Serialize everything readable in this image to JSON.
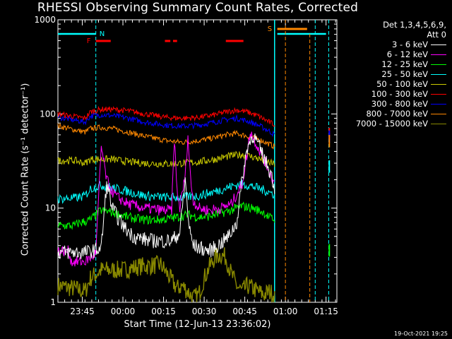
{
  "title": "RHESSI Observing Summary Count Rates, Corrected",
  "ylabel": "Corrected Count Rate (s⁻¹ detector⁻¹)",
  "xlabel": "Start Time (12-Jun-13 23:36:02)",
  "timestamp": "19-Oct-2021 19:25",
  "legend": {
    "header1": "Det 1,3,4,5,6,9,",
    "header2": "Att 0",
    "placement": "right, outside plot"
  },
  "chart_data": {
    "type": "line",
    "title": "RHESSI Observing Summary Count Rates, Corrected",
    "xlabel": "Start Time (12-Jun-13 23:36:02)",
    "ylabel": "Corrected Count Rate (s⁻¹ detector⁻¹)",
    "xscale": "time (minutes after 23:36:02)",
    "yscale": "log",
    "xlim": [
      0,
      103
    ],
    "ylim": [
      1,
      1000
    ],
    "x_ticks": [
      {
        "t": 9,
        "label": "23:45"
      },
      {
        "t": 24,
        "label": "00:00"
      },
      {
        "t": 39,
        "label": "00:15"
      },
      {
        "t": 54,
        "label": "00:30"
      },
      {
        "t": 69,
        "label": "00:45"
      },
      {
        "t": 84,
        "label": "01:00"
      },
      {
        "t": 99,
        "label": "01:15"
      }
    ],
    "y_ticks": [
      {
        "v": 1,
        "label": "1"
      },
      {
        "v": 10,
        "label": "10"
      },
      {
        "v": 100,
        "label": "100"
      },
      {
        "v": 1000,
        "label": "1000"
      }
    ],
    "series": [
      {
        "name": "3 - 6 keV",
        "color": "#ffffff",
        "x": [
          0,
          11,
          14,
          16,
          18,
          19,
          20,
          22,
          25,
          28,
          34,
          38,
          42,
          45,
          47,
          48.5,
          50,
          52,
          56,
          60,
          63,
          66,
          68,
          70,
          72,
          73.5,
          75,
          77,
          79,
          80
        ],
        "y": [
          3.4,
          3.4,
          3.6,
          3.8,
          18,
          14,
          10,
          8,
          6,
          5,
          4.5,
          4.5,
          4.5,
          5.5,
          20,
          6,
          4,
          3.8,
          3.5,
          4.2,
          5,
          7,
          20,
          45,
          60,
          50,
          40,
          30,
          22,
          16
        ]
      },
      {
        "name": "6 - 12 keV",
        "color": "#ff00ff",
        "x": [
          0,
          4,
          5,
          10,
          14,
          16,
          17,
          18,
          20,
          22,
          26,
          32,
          38,
          42,
          43,
          44,
          45,
          47,
          48,
          49,
          50,
          52,
          56,
          60,
          64,
          68,
          70,
          71,
          73,
          75,
          78,
          80
        ],
        "y": [
          3.5,
          3.5,
          2.7,
          2.7,
          3.3,
          45,
          30,
          20,
          15,
          13,
          11,
          10,
          9.5,
          9.5,
          55,
          15,
          10,
          22,
          58,
          20,
          12,
          10,
          9.5,
          10,
          11,
          18,
          40,
          65,
          50,
          38,
          25,
          18
        ]
      },
      {
        "name": "12 - 25 keV",
        "color": "#00ff00",
        "x": [
          0,
          6,
          8,
          10,
          12,
          14,
          16,
          20,
          26,
          32,
          38,
          44,
          48,
          52,
          56,
          60,
          64,
          68,
          72,
          76,
          78,
          80
        ],
        "y": [
          6.5,
          6.5,
          7.0,
          7.2,
          7.5,
          8.5,
          9.5,
          9.0,
          8.0,
          7.5,
          7.5,
          8.0,
          8.5,
          8.0,
          8.2,
          8.8,
          9.5,
          10.5,
          10.0,
          9.0,
          8.0,
          7.5
        ]
      },
      {
        "name": "25 - 50 keV",
        "color": "#00ffff",
        "x": [
          0,
          6,
          8,
          10,
          12,
          16,
          20,
          26,
          32,
          40,
          46,
          52,
          58,
          64,
          68,
          72,
          76,
          80
        ],
        "y": [
          12.5,
          12.8,
          13.0,
          13.5,
          16,
          17.5,
          16.5,
          15,
          13.5,
          13,
          13,
          13.5,
          15,
          17,
          18,
          17,
          15.5,
          14
        ]
      },
      {
        "name": "50 - 100 keV",
        "color": "#cccc00",
        "x": [
          0,
          6,
          10,
          12,
          16,
          20,
          26,
          32,
          40,
          46,
          52,
          58,
          64,
          68,
          72,
          76,
          80
        ],
        "y": [
          32,
          32,
          30,
          33,
          33,
          33,
          31,
          30,
          29.5,
          30,
          31,
          33,
          36,
          37,
          35,
          32,
          29
        ]
      },
      {
        "name": "100 - 300 keV",
        "color": "#ff0000",
        "x": [
          0,
          4,
          8,
          10,
          12,
          16,
          20,
          26,
          32,
          40,
          46,
          52,
          58,
          62,
          66,
          70,
          74,
          78,
          80
        ],
        "y": [
          100,
          96,
          92,
          90,
          105,
          112,
          112,
          108,
          100,
          92,
          90,
          92,
          98,
          105,
          110,
          105,
          95,
          82,
          77
        ]
      },
      {
        "name": "300 - 800 keV",
        "color": "#0000ff",
        "x": [
          0,
          4,
          8,
          10,
          12,
          16,
          20,
          26,
          32,
          40,
          46,
          52,
          58,
          62,
          66,
          70,
          74,
          78,
          80
        ],
        "y": [
          93,
          88,
          84,
          82,
          95,
          98,
          96,
          90,
          82,
          76,
          74,
          76,
          82,
          87,
          90,
          84,
          76,
          66,
          60
        ]
      },
      {
        "name": "800 - 7000 keV",
        "color": "#ff8800",
        "x": [
          0,
          4,
          8,
          10,
          12,
          16,
          20,
          26,
          32,
          40,
          46,
          52,
          58,
          62,
          66,
          70,
          74,
          78,
          80
        ],
        "y": [
          75,
          70,
          66,
          64,
          70,
          72,
          70,
          64,
          58,
          52,
          50,
          52,
          56,
          60,
          62,
          58,
          54,
          48,
          45
        ]
      },
      {
        "name": "7000 - 15000 keV",
        "color": "#888800",
        "x": [
          0,
          6,
          10,
          12,
          16,
          24,
          30,
          38,
          44,
          46,
          48,
          50,
          52,
          54,
          56,
          58,
          60,
          62,
          64,
          66,
          68,
          70,
          72,
          74,
          76,
          78,
          80
        ],
        "y": [
          1.5,
          1.4,
          1.3,
          1.8,
          2.2,
          2.2,
          2.4,
          2.5,
          1.4,
          1.5,
          1.3,
          1.1,
          1.2,
          1.8,
          2.4,
          3.0,
          3.2,
          3.0,
          2.0,
          1.5,
          1.3,
          1.5,
          1.4,
          1.3,
          1.2,
          1.3,
          1.2
        ]
      }
    ],
    "markers": {
      "flare_bars": [
        [
          14,
          19.5
        ],
        [
          39.5,
          41.5
        ],
        [
          42.5,
          44
        ],
        [
          62,
          68.5
        ]
      ],
      "flare_label": "F",
      "night_lines": [
        14,
        80,
        95,
        100
      ],
      "night_label": "N",
      "saa_start": 80,
      "saa_bars": [
        [
          81,
          92
        ]
      ],
      "saa_label": "S",
      "attenuator_vline": 84,
      "cyan_top_segments": [
        [
          0,
          14
        ],
        [
          81,
          99
        ]
      ]
    }
  }
}
